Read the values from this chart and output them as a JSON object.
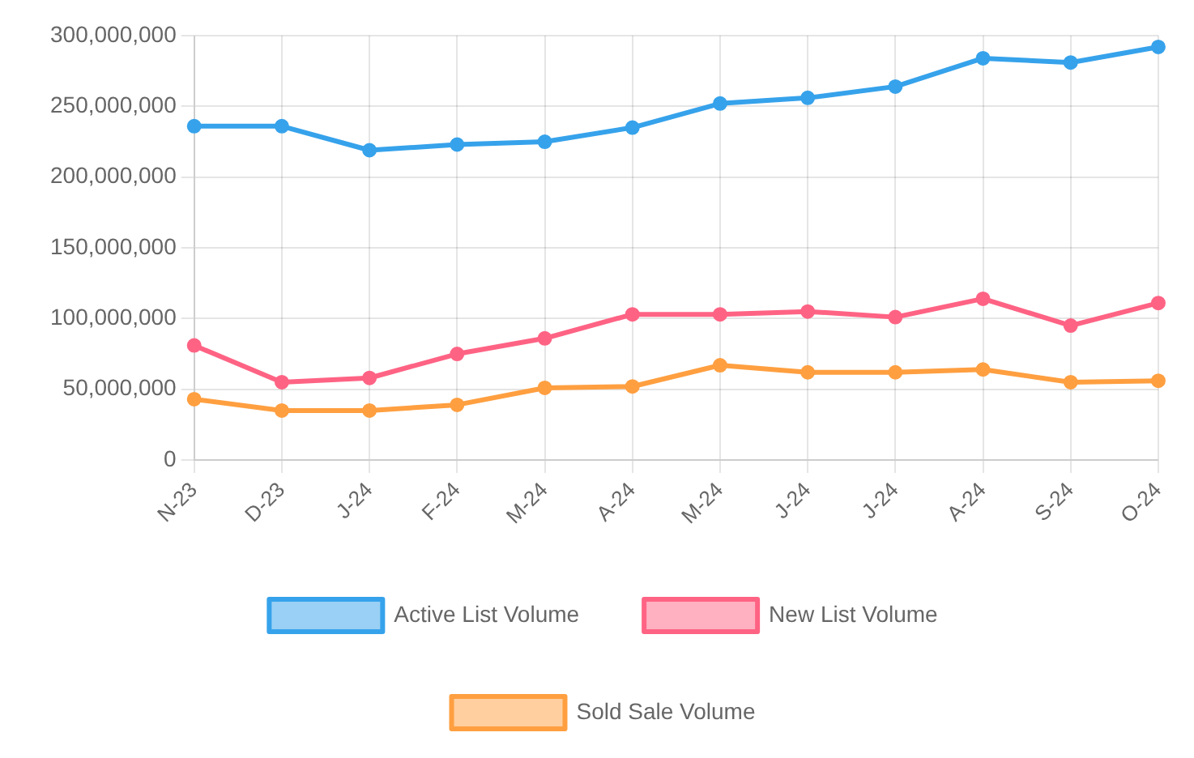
{
  "chart_data": {
    "type": "line",
    "categories": [
      "N-23",
      "D-23",
      "J-24",
      "F-24",
      "M-24",
      "A-24",
      "M-24",
      "J-24",
      "J-24",
      "A-24",
      "S-24",
      "O-24"
    ],
    "series": [
      {
        "name": "Active List Volume",
        "color": "#36a2eb",
        "values": [
          236000000,
          236000000,
          219000000,
          223000000,
          225000000,
          235000000,
          252000000,
          256000000,
          264000000,
          284000000,
          281000000,
          292000000
        ]
      },
      {
        "name": "New List Volume",
        "color": "#ff6384",
        "values": [
          81000000,
          55000000,
          58000000,
          75000000,
          86000000,
          103000000,
          103000000,
          105000000,
          101000000,
          114000000,
          95000000,
          111000000
        ]
      },
      {
        "name": "Sold Sale Volume",
        "color": "#ff9f40",
        "values": [
          43000000,
          35000000,
          35000000,
          39000000,
          51000000,
          52000000,
          67000000,
          62000000,
          62000000,
          64000000,
          55000000,
          56000000
        ]
      }
    ],
    "ylim": [
      0,
      300000000
    ],
    "yticks": [
      0,
      {
        "value": 50000000,
        "label": "50,000,000"
      },
      {
        "value": 100000000,
        "label": "100,000,000"
      },
      {
        "value": 150000000,
        "label": "150,000,000"
      },
      {
        "value": 200000000,
        "label": "200,000,000"
      },
      {
        "value": 250000000,
        "label": "250,000,000"
      },
      {
        "value": 300000000,
        "label": "300,000,000"
      }
    ],
    "grid": true,
    "legend": "bottom",
    "marker": "circle",
    "line_style": "solid"
  }
}
